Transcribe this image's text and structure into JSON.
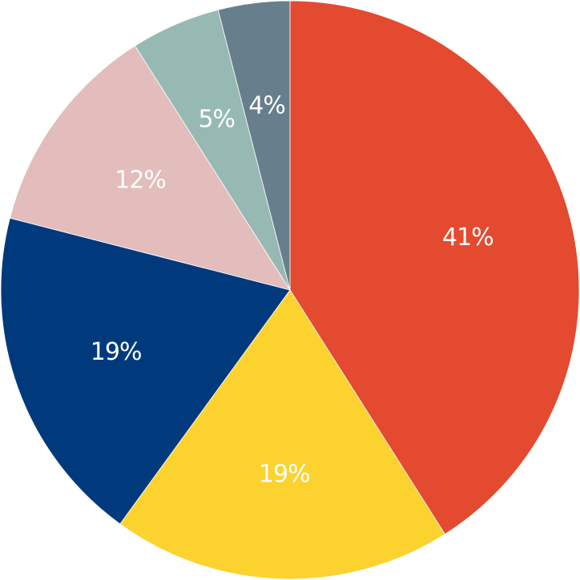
{
  "chart_data": {
    "type": "pie",
    "values": [
      41,
      19,
      19,
      12,
      5,
      4
    ],
    "value_labels": [
      "41%",
      "19%",
      "19%",
      "12%",
      "5%",
      "4%"
    ],
    "colors": [
      "#e34a2f",
      "#fcd22f",
      "#003a7d",
      "#e3bcbc",
      "#97b9b3",
      "#677e8c"
    ]
  }
}
